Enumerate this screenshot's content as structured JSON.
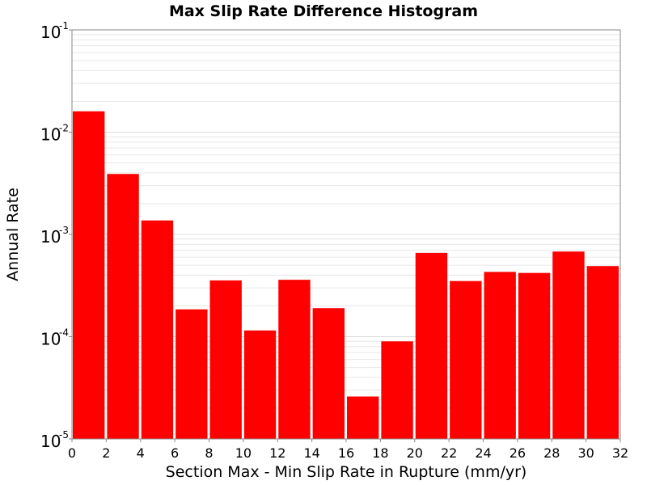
{
  "chart_data": {
    "type": "bar",
    "title": "Max Slip Rate Difference Histogram",
    "xlabel": "Section Max - Min Slip Rate in Rupture (mm/yr)",
    "ylabel": "Annual Rate",
    "xlim": [
      0,
      32
    ],
    "ylim": [
      1e-05,
      0.1
    ],
    "yscale": "log",
    "bin_width": 2,
    "x_ticks": [
      "0",
      "2",
      "4",
      "6",
      "8",
      "10",
      "12",
      "14",
      "16",
      "18",
      "20",
      "22",
      "24",
      "26",
      "28",
      "30",
      "32"
    ],
    "y_ticks": [
      {
        "base": "10",
        "exp": "-5",
        "value": 1e-05
      },
      {
        "base": "10",
        "exp": "-4",
        "value": 0.0001
      },
      {
        "base": "10",
        "exp": "-3",
        "value": 0.001
      },
      {
        "base": "10",
        "exp": "-2",
        "value": 0.01
      },
      {
        "base": "10",
        "exp": "-1",
        "value": 0.1
      }
    ],
    "grid": true,
    "bar_color": "#ff0000",
    "grid_color": "#e6e6e6",
    "bins": [
      {
        "x0": 0,
        "x1": 2,
        "value": 0.016
      },
      {
        "x0": 2,
        "x1": 4,
        "value": 0.0039
      },
      {
        "x0": 4,
        "x1": 6,
        "value": 0.00137
      },
      {
        "x0": 6,
        "x1": 8,
        "value": 0.000185
      },
      {
        "x0": 8,
        "x1": 10,
        "value": 0.000355
      },
      {
        "x0": 10,
        "x1": 12,
        "value": 0.000115
      },
      {
        "x0": 12,
        "x1": 14,
        "value": 0.00036
      },
      {
        "x0": 14,
        "x1": 16,
        "value": 0.00019
      },
      {
        "x0": 16,
        "x1": 18,
        "value": 2.6e-05
      },
      {
        "x0": 18,
        "x1": 20,
        "value": 9e-05
      },
      {
        "x0": 20,
        "x1": 22,
        "value": 0.00066
      },
      {
        "x0": 22,
        "x1": 24,
        "value": 0.00035
      },
      {
        "x0": 24,
        "x1": 26,
        "value": 0.00043
      },
      {
        "x0": 26,
        "x1": 28,
        "value": 0.00042
      },
      {
        "x0": 28,
        "x1": 30,
        "value": 0.00068
      },
      {
        "x0": 30,
        "x1": 32,
        "value": 0.00049
      }
    ]
  }
}
